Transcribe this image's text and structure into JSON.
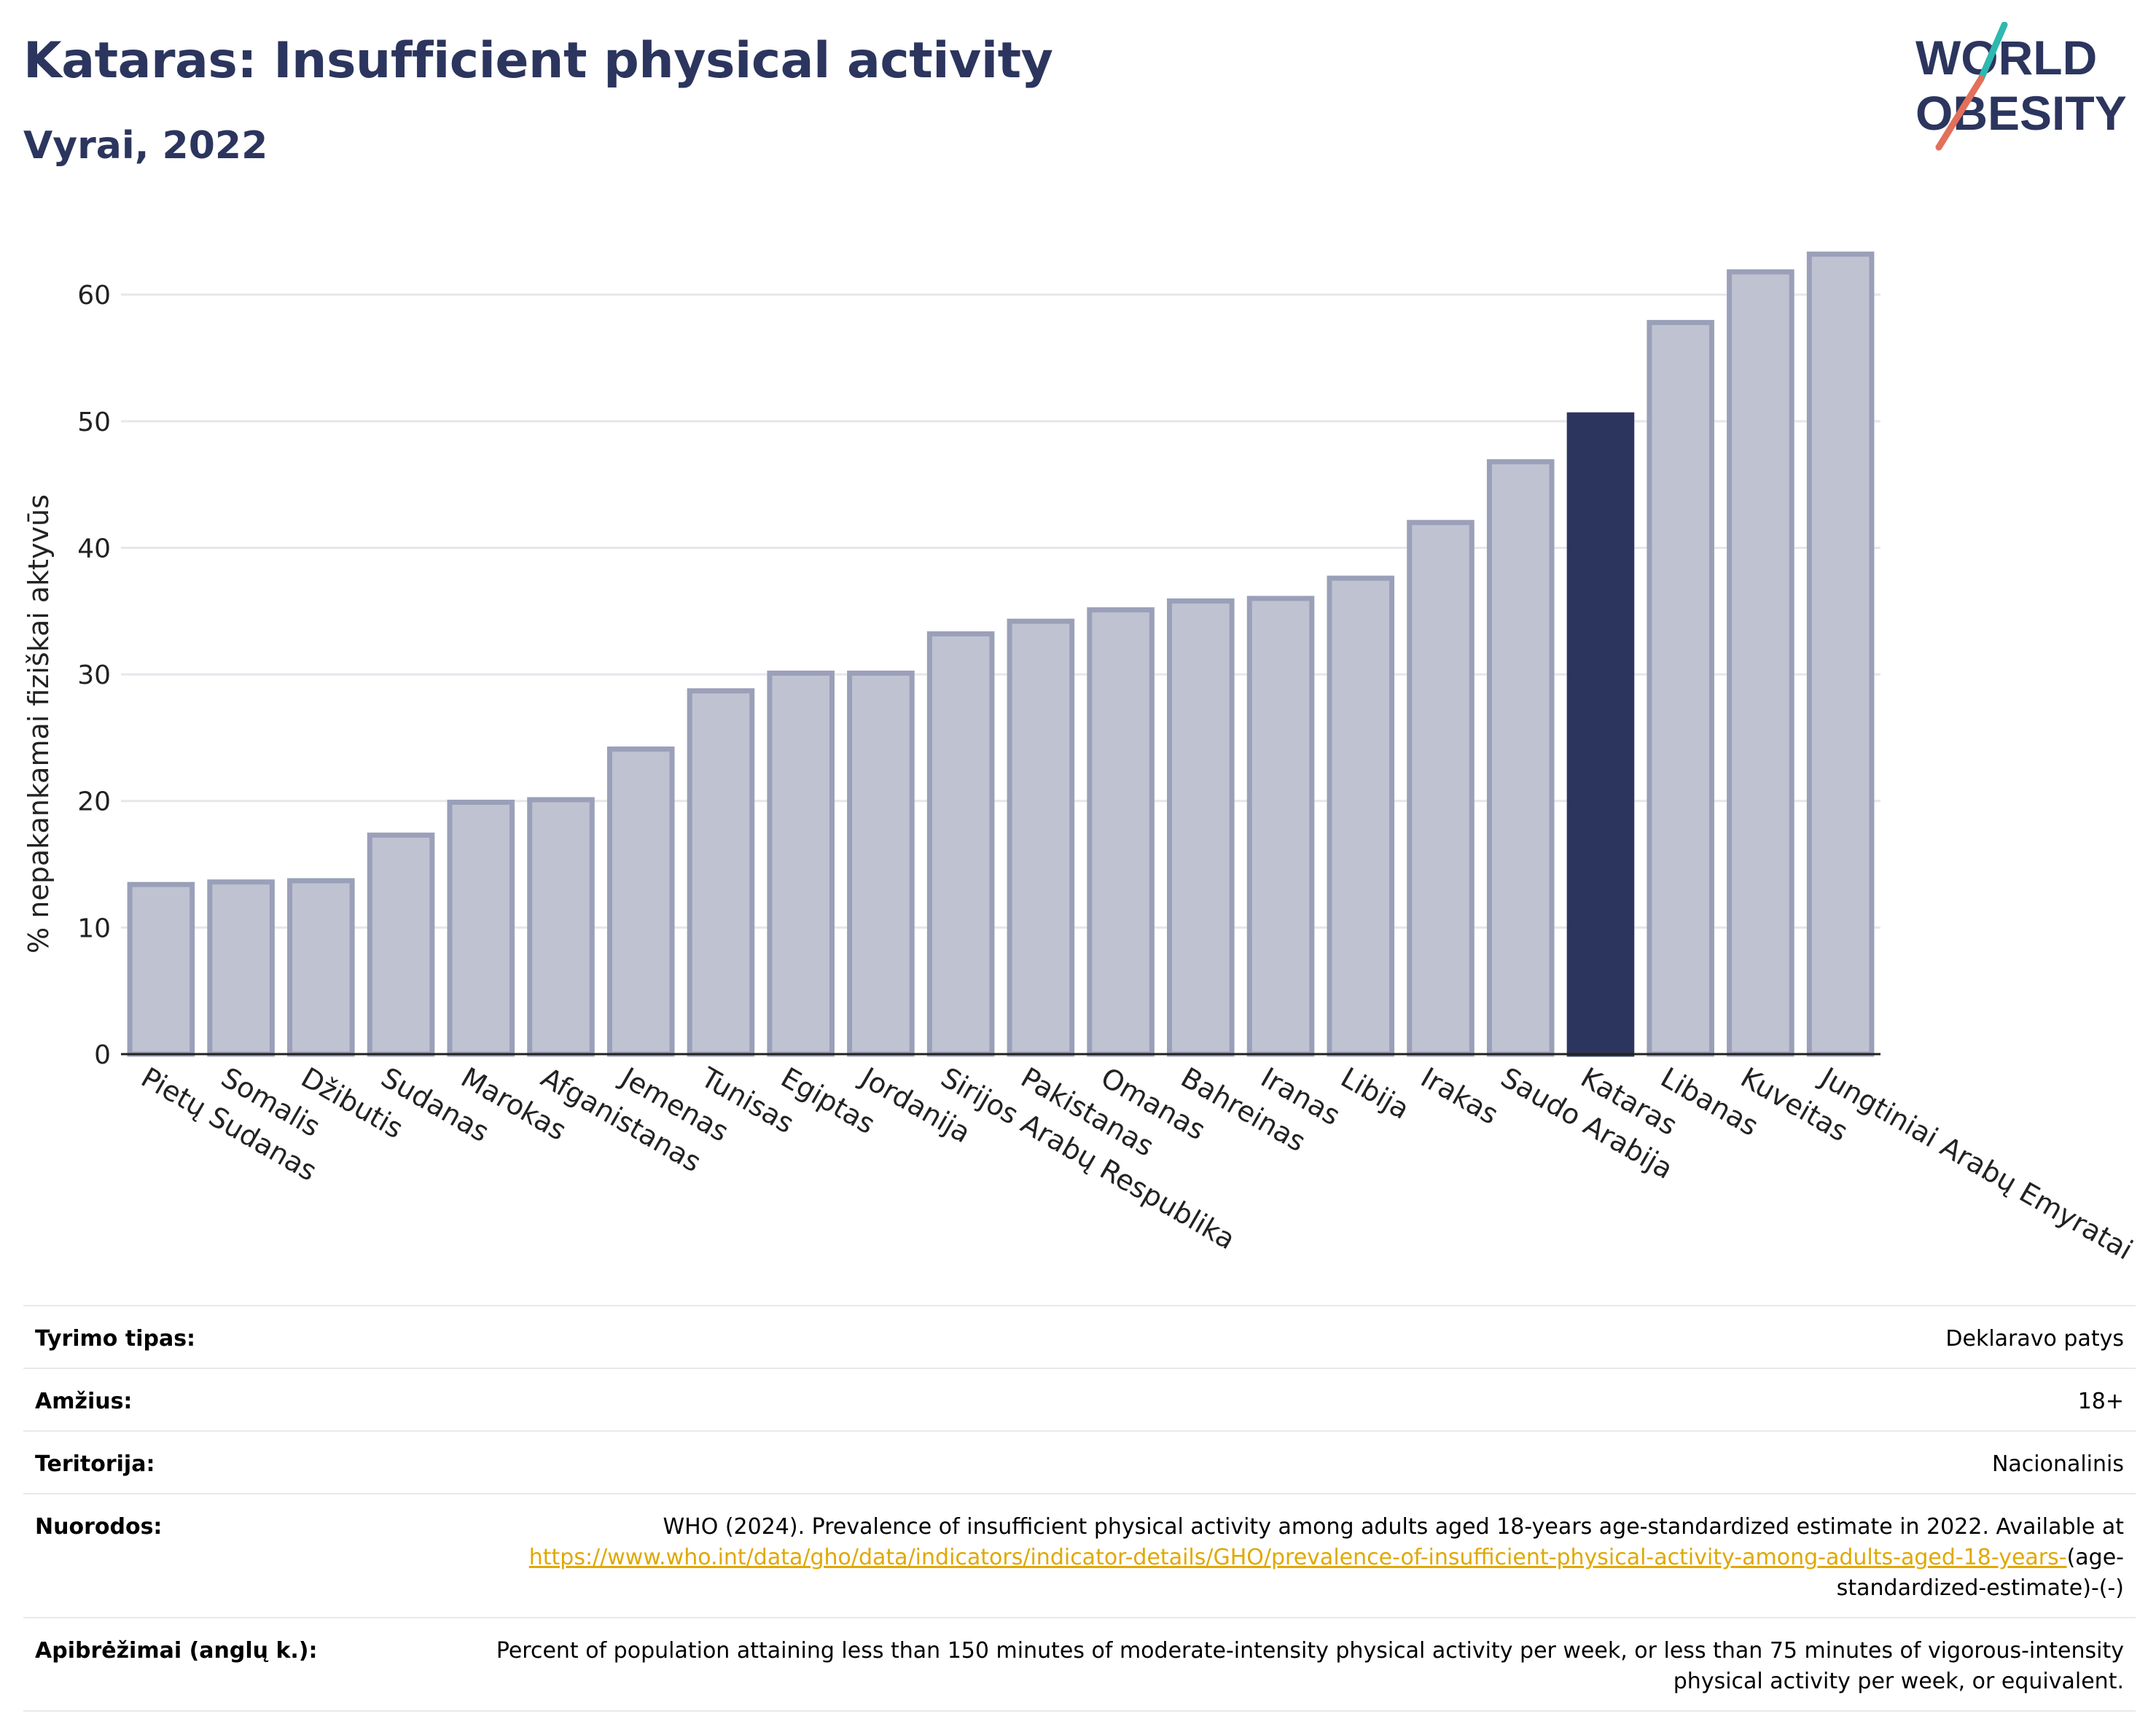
{
  "header": {
    "title": "Kataras: Insufficient physical activity",
    "subtitle": "Vyrai, 2022"
  },
  "logo": {
    "line1": "WORLD",
    "line2": "OBESITY",
    "icon": "world-obesity-logo"
  },
  "colors": {
    "bar": "#bfc2d1",
    "bar_border": "#9ba0b9",
    "highlight": "#2b355e",
    "title": "#2b355e",
    "grid": "#e6e6ec",
    "link": "#e0a800"
  },
  "chart_data": {
    "type": "bar",
    "ylabel": "% nepakankamai fiziškai aktyvūs",
    "ylim": [
      0,
      66
    ],
    "yticks": [
      0,
      10,
      20,
      30,
      40,
      50,
      60
    ],
    "grid": true,
    "highlight": "Kataras",
    "categories": [
      "Pietų Sudanas",
      "Somalis",
      "Džibutis",
      "Sudanas",
      "Marokas",
      "Afganistanas",
      "Jemenas",
      "Tunisas",
      "Egiptas",
      "Jordanija",
      "Sirijos Arabų Respublika",
      "Pakistanas",
      "Omanas",
      "Bahreinas",
      "Iranas",
      "Libija",
      "Irakas",
      "Saudo Arabija",
      "Kataras",
      "Libanas",
      "Kuveitas",
      "Jungtiniai Arabų Emyratai"
    ],
    "values": [
      13.4,
      13.6,
      13.7,
      17.3,
      19.9,
      20.1,
      24.1,
      28.7,
      30.1,
      30.1,
      33.2,
      34.2,
      35.1,
      35.8,
      36.0,
      37.6,
      42.0,
      46.8,
      50.5,
      57.8,
      61.8,
      63.2
    ]
  },
  "meta": {
    "rows": [
      {
        "key": "Tyrimo tipas:",
        "value": "Deklaravo patys"
      },
      {
        "key": "Amžius:",
        "value": "18+"
      },
      {
        "key": "Teritorija:",
        "value": "Nacionalinis"
      }
    ],
    "references_key": "Nuorodos:",
    "references_text": "WHO (2024). Prevalence of insufficient physical activity among adults aged 18-years age-standardized estimate in 2022. Available at",
    "references_link": "https://www.who.int/data/gho/data/indicators/indicator-details/GHO/prevalence-of-insufficient-physical-activity-among-adults-aged-18-years-",
    "references_suffix": "(age-standardized-estimate)-(-)",
    "definitions_key": "Apibrėžimai (anglų k.):",
    "definitions_text": "Percent of population attaining less than 150 minutes of moderate-intensity physical activity per week, or less than 75 minutes of vigorous-intensity physical activity per week, or equivalent."
  }
}
